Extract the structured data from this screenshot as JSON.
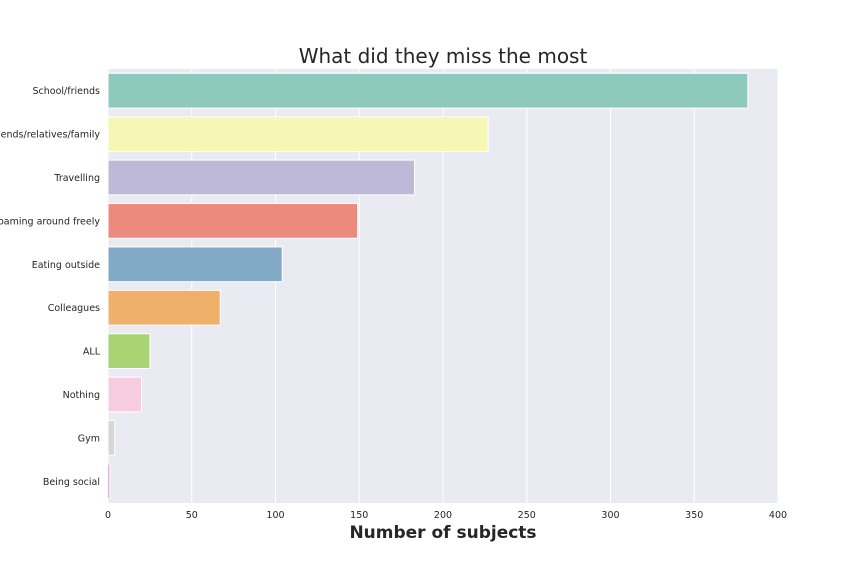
{
  "chart_data": {
    "type": "bar",
    "orientation": "horizontal",
    "title": "What did they miss the most",
    "xlabel": "Number of subjects",
    "ylabel": "",
    "xlim": [
      0,
      400
    ],
    "xticks": [
      0,
      50,
      100,
      150,
      200,
      250,
      300,
      350,
      400
    ],
    "grid": true,
    "background": "#eaeaf2",
    "categories": [
      "School/friends",
      "Friends/relatives/family",
      "Travelling",
      "Roaming around freely",
      "Eating outside",
      "Colleagues",
      "ALL",
      "Nothing",
      "Gym",
      "Being social"
    ],
    "values": [
      382,
      227,
      183,
      149,
      104,
      67,
      25,
      20,
      4,
      1
    ],
    "colors": [
      "#8dc9bc",
      "#f7f7b5",
      "#bdb9d7",
      "#ec8a7d",
      "#82aac7",
      "#f0b06a",
      "#aad374",
      "#f6cde0",
      "#d6d6d6",
      "#b36d9f"
    ]
  }
}
